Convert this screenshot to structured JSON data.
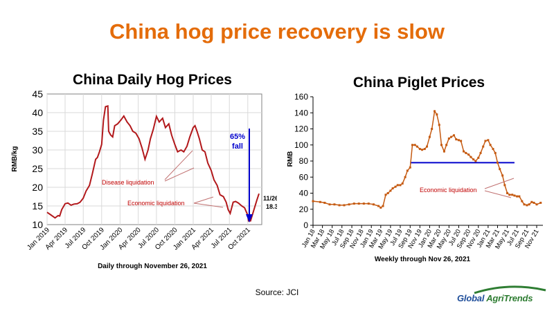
{
  "title": "China hog price recovery is slow",
  "source": "Source:  JCI",
  "logo": {
    "part1": "Global ",
    "part2": "AgriTrends"
  },
  "colors": {
    "title": "#e46c0a",
    "hog_line": "#b2181b",
    "piglet_line": "#c55a11",
    "ref_line": "#0000cc",
    "annotation": "#c00000"
  },
  "chart_data": [
    {
      "type": "line",
      "title": "China Daily Hog Prices",
      "xlabel": "Daily through November 26, 2021",
      "ylabel": "RMB/kg",
      "ylim": [
        10,
        45
      ],
      "yticks": [
        10,
        15,
        20,
        25,
        30,
        35,
        40,
        45
      ],
      "xlim": [
        "2019-01-01",
        "2021-12-10"
      ],
      "xticks": [
        "Jan 2019",
        "Apr 2019",
        "Jul 2019",
        "Oct 2019",
        "Jan 2020",
        "Apr 2020",
        "Jul 2020",
        "Oct 2020",
        "Jan 2021",
        "Apr 2021",
        "Jul 2021",
        "Oct 2021"
      ],
      "grid": true,
      "series": [
        {
          "x": [
            "2019-01-01",
            "2019-01-20",
            "2019-02-10",
            "2019-02-25",
            "2019-03-05",
            "2019-03-15",
            "2019-04-01",
            "2019-04-15",
            "2019-05-01",
            "2019-05-15",
            "2019-06-01",
            "2019-06-15",
            "2019-07-01",
            "2019-07-15",
            "2019-08-01",
            "2019-08-15",
            "2019-09-01",
            "2019-09-10",
            "2019-09-20",
            "2019-10-01",
            "2019-10-10",
            "2019-10-20",
            "2019-11-01",
            "2019-11-05",
            "2019-11-15",
            "2019-11-25",
            "2019-12-05",
            "2019-12-20",
            "2020-01-05",
            "2020-01-20",
            "2020-02-05",
            "2020-02-20",
            "2020-03-05",
            "2020-03-20",
            "2020-04-05",
            "2020-04-20",
            "2020-05-05",
            "2020-05-20",
            "2020-06-01",
            "2020-06-15",
            "2020-07-01",
            "2020-07-15",
            "2020-08-01",
            "2020-08-15",
            "2020-09-01",
            "2020-09-15",
            "2020-10-01",
            "2020-10-15",
            "2020-11-01",
            "2020-11-15",
            "2020-12-01",
            "2020-12-15",
            "2021-01-01",
            "2021-01-10",
            "2021-01-20",
            "2021-02-01",
            "2021-02-15",
            "2021-03-01",
            "2021-03-15",
            "2021-04-01",
            "2021-04-15",
            "2021-05-01",
            "2021-05-15",
            "2021-06-01",
            "2021-06-15",
            "2021-06-25",
            "2021-07-05",
            "2021-07-20",
            "2021-08-01",
            "2021-08-15",
            "2021-09-01",
            "2021-09-15",
            "2021-10-01",
            "2021-10-05",
            "2021-10-15",
            "2021-11-01",
            "2021-11-15",
            "2021-11-26"
          ],
          "values": [
            13.3,
            12.6,
            11.8,
            12.4,
            12.3,
            14.0,
            15.6,
            15.8,
            15.2,
            15.5,
            15.6,
            16.0,
            17.1,
            19.0,
            20.5,
            23.5,
            27.5,
            28.0,
            29.5,
            31.5,
            38.0,
            41.6,
            41.8,
            35.0,
            34.0,
            33.5,
            36.5,
            37.0,
            38.0,
            39.1,
            37.5,
            36.5,
            35.0,
            34.5,
            33.0,
            30.5,
            27.5,
            30.0,
            33.0,
            35.5,
            39.0,
            37.5,
            38.5,
            36.0,
            37.0,
            34.0,
            31.5,
            29.5,
            30.0,
            29.5,
            31.0,
            33.5,
            36.0,
            36.5,
            35.0,
            33.0,
            30.0,
            29.5,
            26.5,
            24.5,
            22.0,
            20.5,
            18.0,
            17.5,
            16.0,
            14.0,
            13.0,
            16.0,
            16.2,
            15.8,
            15.0,
            14.5,
            12.5,
            11.0,
            11.0,
            14.0,
            16.5,
            18.3
          ]
        }
      ],
      "annotations": [
        {
          "text": "65%",
          "color": "#0000cc"
        },
        {
          "text": "fall",
          "color": "#0000cc"
        },
        {
          "text": "Disease liquidation",
          "color": "#c00000"
        },
        {
          "text": "Economic liquidation",
          "color": "#c00000"
        },
        {
          "text": "11/26",
          "color": "#000000"
        },
        {
          "text": "18.3",
          "color": "#000000"
        }
      ]
    },
    {
      "type": "line",
      "title": "China Piglet Prices",
      "xlabel": "Weekly through Nov 26, 2021",
      "ylabel": "RMB",
      "ylim": [
        0,
        160
      ],
      "yticks": [
        0,
        20,
        40,
        60,
        80,
        100,
        120,
        140,
        160
      ],
      "xlim": [
        "2018-01-01",
        "2021-12-10"
      ],
      "xticks": [
        "Jan 18",
        "Mar 18",
        "May 18",
        "Jul 18",
        "Sep 18",
        "Nov 18",
        "Jan 19",
        "Mar 19",
        "May 19",
        "Jul 19",
        "Sep 19",
        "Nov 19",
        "Jan 20",
        "Mar 20",
        "May 20",
        "Jul 20",
        "Sep 20",
        "Nov 20",
        "Jan 21",
        "Mar 21",
        "May 21",
        "Jul 21",
        "Sep 21",
        "Nov 21"
      ],
      "grid": false,
      "reference_line": {
        "y": 78,
        "x_start": "2019-09-01",
        "x_end": "2021-06-15"
      },
      "series": [
        {
          "x": [
            "2018-01-01",
            "2018-02-15",
            "2018-03-15",
            "2018-04-15",
            "2018-05-15",
            "2018-06-15",
            "2018-07-15",
            "2018-08-15",
            "2018-09-15",
            "2018-10-15",
            "2018-11-15",
            "2018-12-15",
            "2019-01-15",
            "2019-02-15",
            "2019-03-01",
            "2019-03-15",
            "2019-04-01",
            "2019-04-15",
            "2019-05-01",
            "2019-05-15",
            "2019-06-01",
            "2019-06-15",
            "2019-07-01",
            "2019-07-15",
            "2019-08-01",
            "2019-08-15",
            "2019-09-01",
            "2019-09-15",
            "2019-10-01",
            "2019-10-15",
            "2019-11-01",
            "2019-11-15",
            "2019-12-01",
            "2019-12-15",
            "2020-01-01",
            "2020-01-15",
            "2020-02-01",
            "2020-02-15",
            "2020-03-01",
            "2020-03-15",
            "2020-04-01",
            "2020-04-15",
            "2020-05-01",
            "2020-05-15",
            "2020-06-01",
            "2020-06-15",
            "2020-07-01",
            "2020-07-15",
            "2020-08-01",
            "2020-08-15",
            "2020-09-01",
            "2020-09-15",
            "2020-10-01",
            "2020-10-15",
            "2020-11-01",
            "2020-11-15",
            "2020-12-01",
            "2020-12-15",
            "2021-01-01",
            "2021-01-15",
            "2021-02-01",
            "2021-02-15",
            "2021-03-01",
            "2021-03-15",
            "2021-04-01",
            "2021-04-15",
            "2021-05-01",
            "2021-05-15",
            "2021-06-01",
            "2021-06-15",
            "2021-07-01",
            "2021-07-15",
            "2021-08-01",
            "2021-08-15",
            "2021-09-01",
            "2021-09-15",
            "2021-10-01",
            "2021-10-15",
            "2021-11-01",
            "2021-11-26"
          ],
          "values": [
            30,
            29,
            28,
            26,
            26,
            25,
            25,
            26,
            27,
            27,
            27,
            27,
            26,
            24,
            22,
            24,
            38,
            40,
            43,
            46,
            48,
            50,
            50,
            52,
            60,
            68,
            72,
            100,
            100,
            98,
            95,
            94,
            95,
            98,
            110,
            120,
            142,
            138,
            125,
            100,
            92,
            100,
            108,
            110,
            112,
            107,
            106,
            105,
            92,
            90,
            88,
            85,
            82,
            80,
            84,
            90,
            98,
            105,
            106,
            100,
            95,
            90,
            78,
            70,
            62,
            50,
            40,
            38,
            38,
            37,
            36,
            36,
            30,
            26,
            25,
            26,
            29,
            28,
            26,
            28
          ]
        }
      ],
      "annotations": [
        {
          "text": "Economic liquidation",
          "color": "#c00000"
        }
      ]
    }
  ]
}
